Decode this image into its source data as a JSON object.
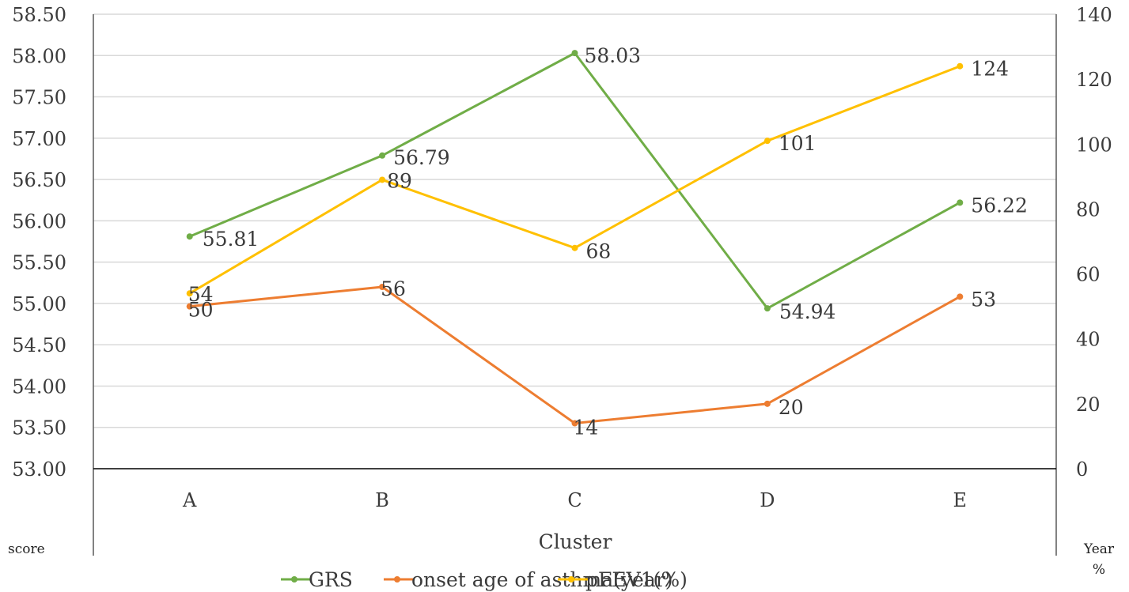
{
  "chart_data": {
    "type": "line",
    "categories": [
      "A",
      "B",
      "C",
      "D",
      "E"
    ],
    "xlabel": "Cluster",
    "ylabel": "score",
    "y2label_lines": [
      "Year",
      "%"
    ],
    "ylim": [
      53.0,
      58.5
    ],
    "y2lim": [
      0,
      140
    ],
    "yticks": [
      "53.00",
      "53.50",
      "54.00",
      "54.50",
      "55.00",
      "55.50",
      "56.00",
      "56.50",
      "57.00",
      "57.50",
      "58.00",
      "58.50"
    ],
    "y2ticks": [
      "0",
      "20",
      "40",
      "60",
      "80",
      "100",
      "120",
      "140"
    ],
    "grid": true,
    "legend_position": "bottom",
    "series": [
      {
        "name": "GRS",
        "axis": "left",
        "color": "#70AD47",
        "values": [
          55.81,
          56.79,
          58.03,
          54.94,
          56.22
        ],
        "labels": [
          "55.81",
          "56.79",
          "58.03",
          "54.94",
          "56.22"
        ]
      },
      {
        "name": "onset age of asthma(year)",
        "axis": "right",
        "color": "#ED7D31",
        "values": [
          50,
          56,
          14,
          20,
          53
        ],
        "labels": [
          "50",
          "56",
          "14",
          "20",
          "53"
        ]
      },
      {
        "name": "pFEV1(%)",
        "axis": "right",
        "color": "#FFC000",
        "values": [
          54,
          89,
          68,
          101,
          124
        ],
        "labels": [
          "54",
          "89",
          "68",
          "101",
          "124"
        ]
      }
    ]
  }
}
